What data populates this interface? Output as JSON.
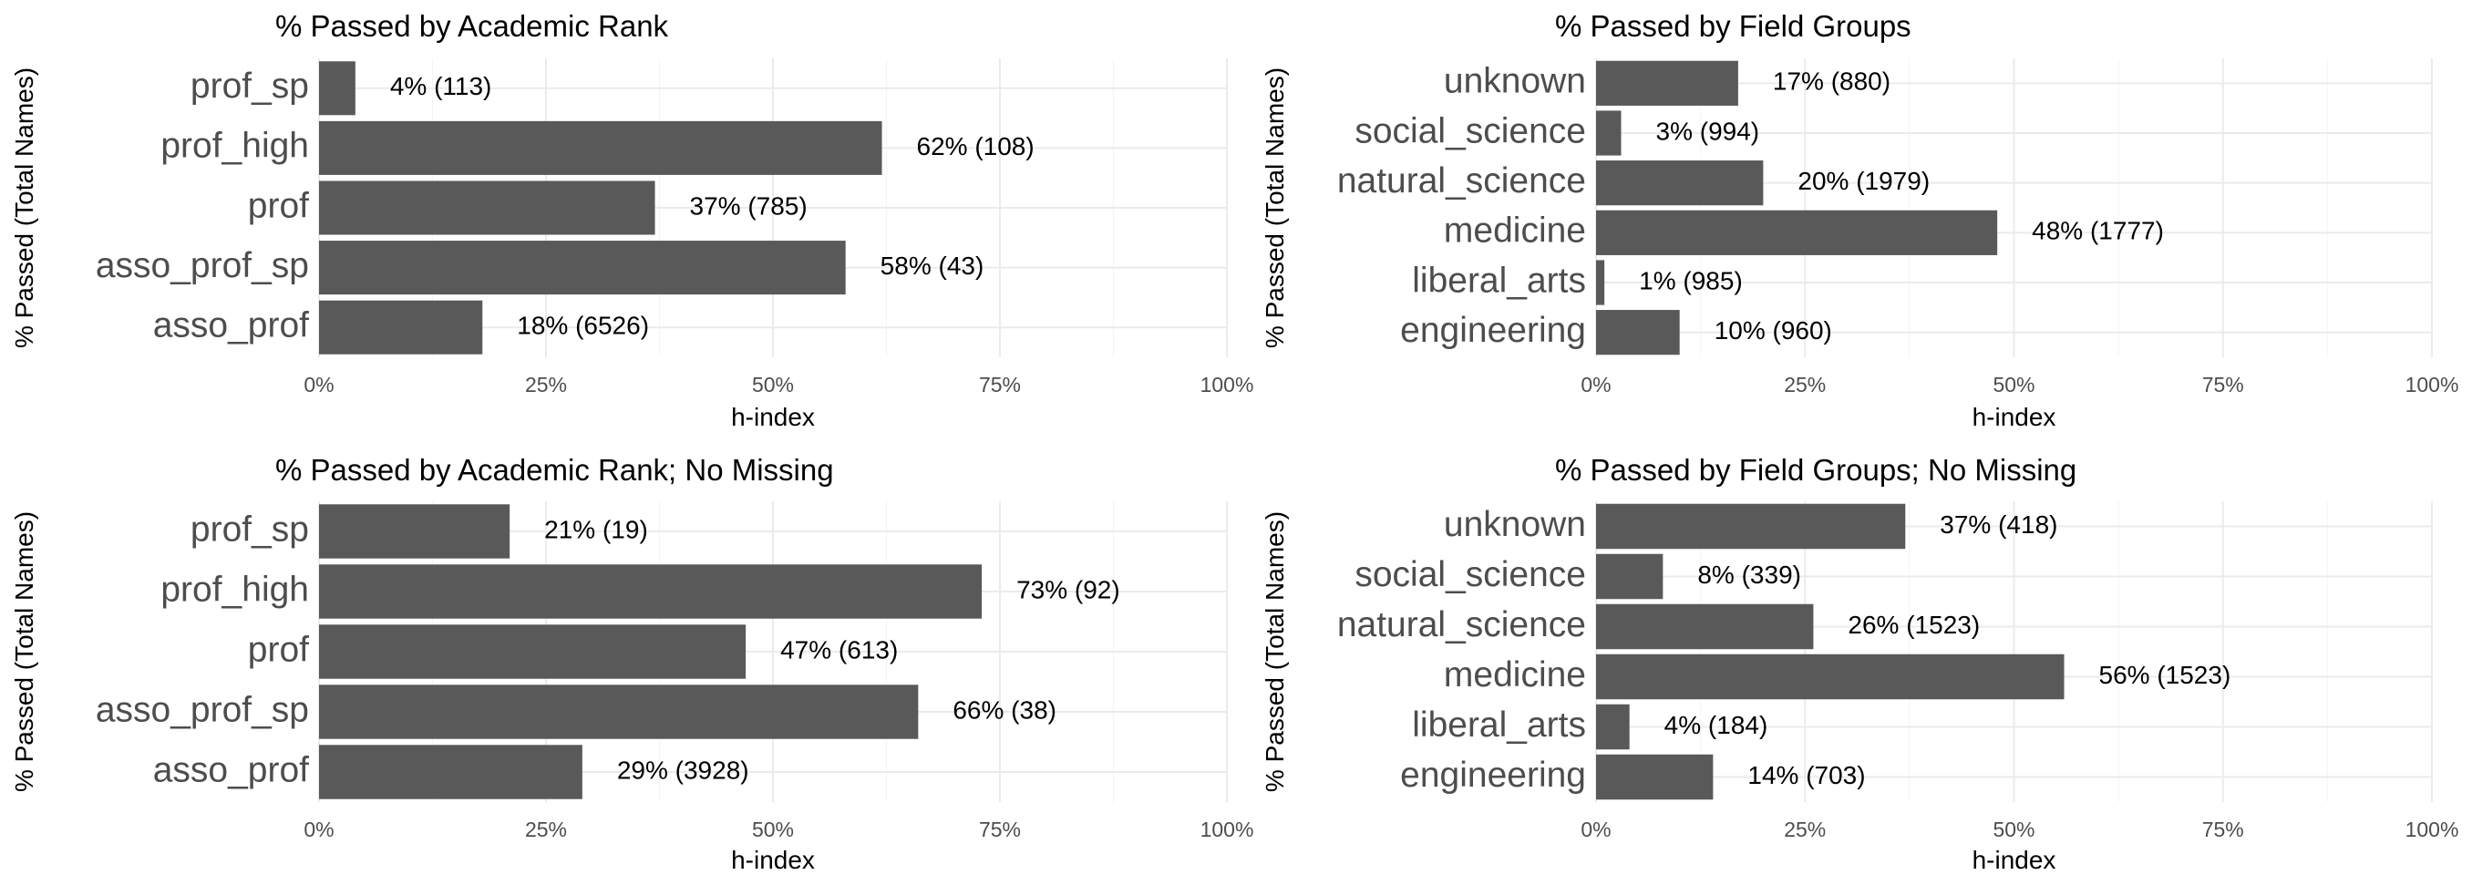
{
  "chart_data": [
    {
      "type": "bar",
      "orientation": "horizontal",
      "title": "% Passed by Academic Rank",
      "xlabel": "h-index",
      "ylabel": "% Passed (Total Names)",
      "categories": [
        "prof_sp",
        "prof_high",
        "prof",
        "asso_prof_sp",
        "asso_prof"
      ],
      "values": [
        4,
        62,
        37,
        58,
        18
      ],
      "data_labels": [
        "4% (113)",
        "62% (108)",
        "37% (785)",
        "58% (43)",
        "18% (6526)"
      ],
      "xlim": [
        0,
        100
      ],
      "x_ticks": [
        "0%",
        "25%",
        "50%",
        "75%",
        "100%"
      ],
      "bar_color": "#595959",
      "grid": true
    },
    {
      "type": "bar",
      "orientation": "horizontal",
      "title": "% Passed by Field Groups",
      "xlabel": "h-index",
      "ylabel": "% Passed (Total Names)",
      "categories": [
        "unknown",
        "social_science",
        "natural_science",
        "medicine",
        "liberal_arts",
        "engineering"
      ],
      "values": [
        17,
        3,
        20,
        48,
        1,
        10
      ],
      "data_labels": [
        "17% (880)",
        "3% (994)",
        "20% (1979)",
        "48% (1777)",
        "1% (985)",
        "10% (960)"
      ],
      "xlim": [
        0,
        100
      ],
      "x_ticks": [
        "0%",
        "25%",
        "50%",
        "75%",
        "100%"
      ],
      "bar_color": "#595959",
      "grid": true
    },
    {
      "type": "bar",
      "orientation": "horizontal",
      "title": "% Passed by Academic Rank; No Missing",
      "xlabel": "h-index",
      "ylabel": "% Passed (Total Names)",
      "categories": [
        "prof_sp",
        "prof_high",
        "prof",
        "asso_prof_sp",
        "asso_prof"
      ],
      "values": [
        21,
        73,
        47,
        66,
        29
      ],
      "data_labels": [
        "21% (19)",
        "73% (92)",
        "47% (613)",
        "66% (38)",
        "29% (3928)"
      ],
      "xlim": [
        0,
        100
      ],
      "x_ticks": [
        "0%",
        "25%",
        "50%",
        "75%",
        "100%"
      ],
      "bar_color": "#595959",
      "grid": true
    },
    {
      "type": "bar",
      "orientation": "horizontal",
      "title": "% Passed by Field Groups; No Missing",
      "xlabel": "h-index",
      "ylabel": "% Passed (Total Names)",
      "categories": [
        "unknown",
        "social_science",
        "natural_science",
        "medicine",
        "liberal_arts",
        "engineering"
      ],
      "values": [
        37,
        8,
        26,
        56,
        4,
        14
      ],
      "data_labels": [
        "37% (418)",
        "8% (339)",
        "26% (1523)",
        "56% (1523)",
        "4% (184)",
        "14% (703)"
      ],
      "xlim": [
        0,
        100
      ],
      "x_ticks": [
        "0%",
        "25%",
        "50%",
        "75%",
        "100%"
      ],
      "bar_color": "#595959",
      "grid": true
    }
  ]
}
